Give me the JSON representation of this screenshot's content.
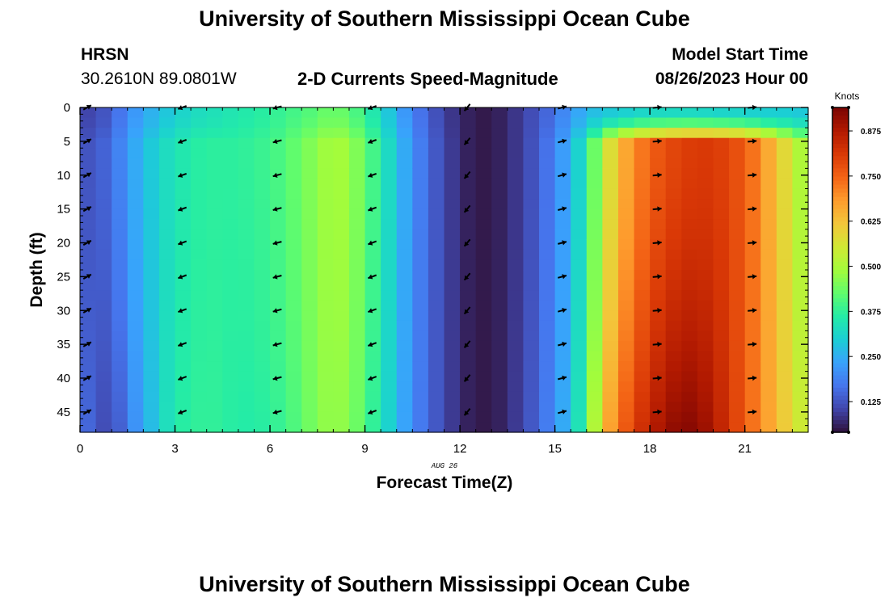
{
  "page": {
    "title_top": "University of Southern Mississippi Ocean Cube",
    "title_bottom": "University of Southern Mississippi Ocean Cube",
    "station": "HRSN",
    "coords": "30.2610N  89.0801W",
    "plot_title": "2-D Currents Speed-Magnitude",
    "model_label": "Model Start Time",
    "model_time": "08/26/2023 Hour 00"
  },
  "chart_data": {
    "type": "heatmap",
    "title": "2-D Currents Speed-Magnitude",
    "xlabel": "Forecast Time(Z)",
    "ylabel": "Depth (ft)",
    "date_label": "AUG 26",
    "x_ticks": [
      0,
      3,
      6,
      9,
      12,
      15,
      18,
      21
    ],
    "y_ticks": [
      0,
      5,
      10,
      15,
      20,
      25,
      30,
      35,
      40,
      45
    ],
    "xlim": [
      0,
      23
    ],
    "ylim": [
      48,
      0
    ],
    "colorbar": {
      "label": "Knots",
      "range": [
        0.04,
        0.94
      ],
      "ticks": [
        "0.125",
        "0.250",
        "0.375",
        "0.500",
        "0.625",
        "0.750",
        "0.875"
      ]
    },
    "colors": {
      "vmin": "#30123b",
      "c1": "#4145ab",
      "c2": "#4675ed",
      "c3": "#39a2fc",
      "c4": "#1bcfd4",
      "c5": "#24eca6",
      "c6": "#61fc6c",
      "c7": "#a4fc3b",
      "c8": "#d1e834",
      "c9": "#f3c63a",
      "c10": "#fe9b2d",
      "c11": "#f36315",
      "c12": "#d93806",
      "c13": "#b11901",
      "vmax": "#7a0402"
    },
    "speed_profile_hours": [
      0,
      0.5,
      1,
      1.5,
      2,
      2.5,
      3,
      3.5,
      4,
      4.5,
      5,
      5.5,
      6,
      6.5,
      7,
      7.5,
      8,
      8.5,
      9,
      9.5,
      10,
      10.5,
      11,
      11.5,
      12,
      12.5,
      13,
      13.5,
      14,
      14.5,
      15,
      15.5,
      16,
      16.5,
      17,
      17.5,
      18,
      18.5,
      19,
      19.5,
      20,
      20.5,
      21,
      21.5,
      22,
      22.5,
      23
    ],
    "speed_surface": [
      0.1,
      0.11,
      0.14,
      0.2,
      0.24,
      0.27,
      0.3,
      0.32,
      0.33,
      0.34,
      0.35,
      0.36,
      0.37,
      0.39,
      0.4,
      0.42,
      0.44,
      0.42,
      0.38,
      0.32,
      0.25,
      0.19,
      0.14,
      0.1,
      0.07,
      0.05,
      0.05,
      0.07,
      0.1,
      0.13,
      0.17,
      0.22,
      0.26,
      0.28,
      0.29,
      0.3,
      0.31,
      0.31,
      0.31,
      0.31,
      0.3,
      0.3,
      0.3,
      0.29,
      0.29,
      0.29,
      0.28
    ],
    "speed_mid": [
      0.12,
      0.13,
      0.16,
      0.22,
      0.27,
      0.31,
      0.34,
      0.36,
      0.37,
      0.37,
      0.37,
      0.38,
      0.39,
      0.41,
      0.44,
      0.47,
      0.5,
      0.48,
      0.43,
      0.36,
      0.28,
      0.21,
      0.15,
      0.11,
      0.07,
      0.05,
      0.05,
      0.07,
      0.1,
      0.14,
      0.19,
      0.26,
      0.35,
      0.52,
      0.63,
      0.7,
      0.75,
      0.78,
      0.8,
      0.81,
      0.81,
      0.79,
      0.76,
      0.7,
      0.62,
      0.55,
      0.46
    ],
    "speed_bottom": [
      0.17,
      0.13,
      0.1,
      0.18,
      0.24,
      0.3,
      0.36,
      0.37,
      0.38,
      0.37,
      0.36,
      0.36,
      0.37,
      0.39,
      0.42,
      0.46,
      0.48,
      0.46,
      0.41,
      0.34,
      0.27,
      0.2,
      0.15,
      0.11,
      0.07,
      0.05,
      0.05,
      0.07,
      0.11,
      0.15,
      0.21,
      0.28,
      0.4,
      0.62,
      0.73,
      0.8,
      0.86,
      0.9,
      0.93,
      0.92,
      0.88,
      0.82,
      0.76,
      0.7,
      0.64,
      0.58,
      0.52
    ],
    "arrow_hours": [
      0,
      3,
      6,
      9,
      12,
      15,
      18,
      21
    ],
    "arrow_direction_deg": [
      30,
      200,
      195,
      200,
      230,
      15,
      5,
      5
    ],
    "arrow_depths": [
      0,
      5,
      10,
      15,
      20,
      25,
      30,
      35,
      40,
      45
    ]
  }
}
